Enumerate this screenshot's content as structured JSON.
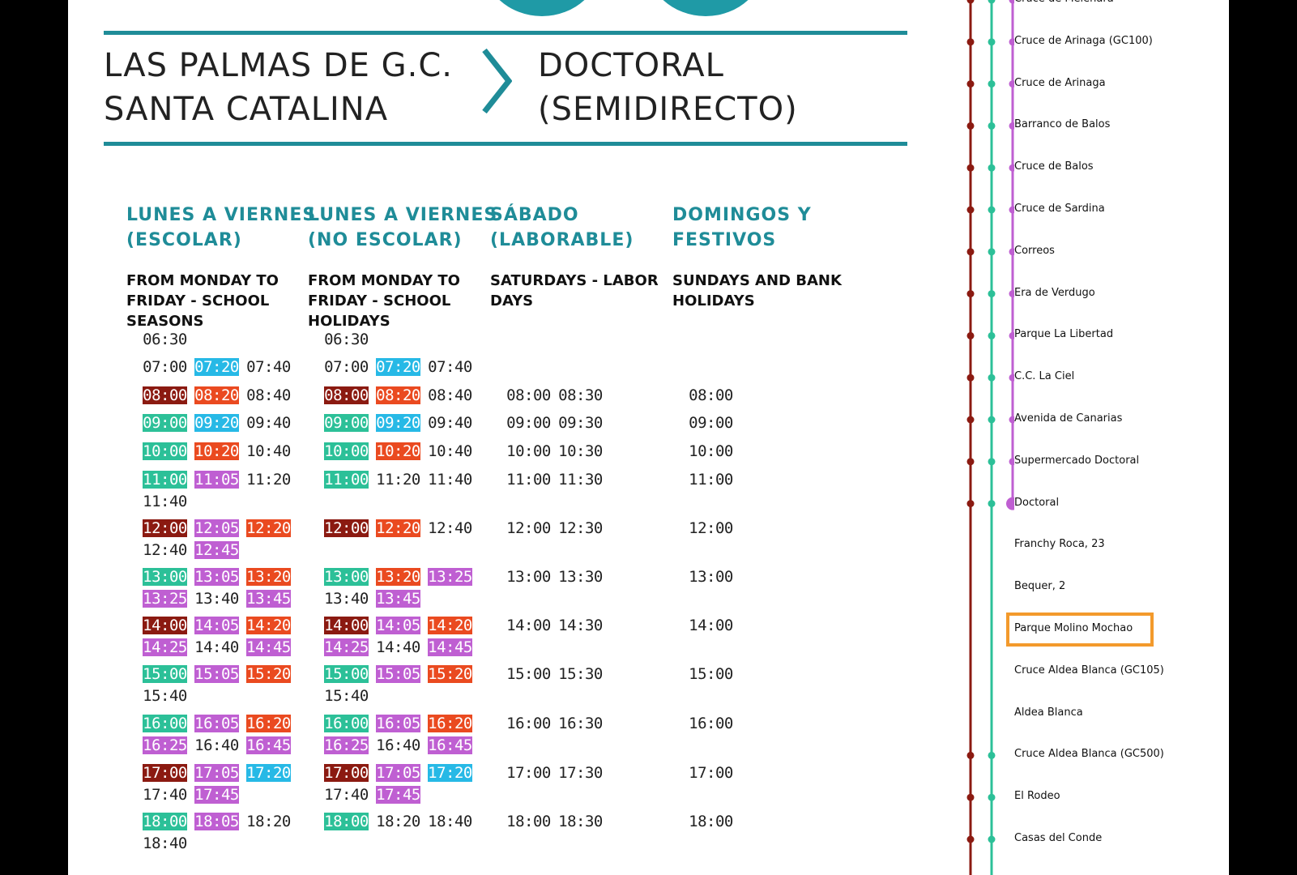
{
  "colors": {
    "maroon": "#8b1a11",
    "green": "#2cc098",
    "purple": "#bf5fd2",
    "cyan": "#27b9e6",
    "orange": "#ea4a20",
    "black": "#111111",
    "teal": "#1f8c98",
    "highlight": "#f39a2c"
  },
  "route": {
    "origin_line1": "LAS PALMAS DE G.C.",
    "origin_line2": "SANTA CATALINA",
    "destination_line1": "DOCTORAL",
    "destination_line2": "(SEMIDIRECTO)"
  },
  "columns": [
    {
      "heading": "LUNES A VIERNES\n(ESCOLAR)",
      "subheading": "FROM MONDAY TO\nFRIDAY - SCHOOL\nSEASONS",
      "rows": [
        [
          {
            "t": "06:30"
          }
        ],
        [
          {
            "t": "07:00"
          },
          {
            "t": "07:20",
            "c": "cyan"
          },
          {
            "t": "07:40"
          }
        ],
        [
          {
            "t": "08:00",
            "c": "maroon"
          },
          {
            "t": "08:20",
            "c": "orange"
          },
          {
            "t": "08:40"
          }
        ],
        [
          {
            "t": "09:00",
            "c": "green"
          },
          {
            "t": "09:20",
            "c": "cyan"
          },
          {
            "t": "09:40"
          }
        ],
        [
          {
            "t": "10:00",
            "c": "green"
          },
          {
            "t": "10:20",
            "c": "orange"
          },
          {
            "t": "10:40"
          }
        ],
        [
          {
            "t": "11:00",
            "c": "green"
          },
          {
            "t": "11:05",
            "c": "purple"
          },
          {
            "t": "11:20"
          },
          {
            "t": "11:40"
          }
        ],
        [
          {
            "t": "12:00",
            "c": "maroon"
          },
          {
            "t": "12:05",
            "c": "purple"
          },
          {
            "t": "12:20",
            "c": "orange"
          },
          {
            "t": "12:40"
          },
          {
            "t": "12:45",
            "c": "purple"
          }
        ],
        [
          {
            "t": "13:00",
            "c": "green"
          },
          {
            "t": "13:05",
            "c": "purple"
          },
          {
            "t": "13:20",
            "c": "orange"
          },
          {
            "t": "13:25",
            "c": "purple"
          },
          {
            "t": "13:40"
          },
          {
            "t": "13:45",
            "c": "purple"
          }
        ],
        [
          {
            "t": "14:00",
            "c": "maroon"
          },
          {
            "t": "14:05",
            "c": "purple"
          },
          {
            "t": "14:20",
            "c": "orange"
          },
          {
            "t": "14:25",
            "c": "purple"
          },
          {
            "t": "14:40"
          },
          {
            "t": "14:45",
            "c": "purple"
          }
        ],
        [
          {
            "t": "15:00",
            "c": "green"
          },
          {
            "t": "15:05",
            "c": "purple"
          },
          {
            "t": "15:20",
            "c": "orange"
          },
          {
            "t": "15:40"
          }
        ],
        [
          {
            "t": "16:00",
            "c": "green"
          },
          {
            "t": "16:05",
            "c": "purple"
          },
          {
            "t": "16:20",
            "c": "orange"
          },
          {
            "t": "16:25",
            "c": "purple"
          },
          {
            "t": "16:40"
          },
          {
            "t": "16:45",
            "c": "purple"
          }
        ],
        [
          {
            "t": "17:00",
            "c": "maroon"
          },
          {
            "t": "17:05",
            "c": "purple"
          },
          {
            "t": "17:20",
            "c": "cyan"
          },
          {
            "t": "17:40"
          },
          {
            "t": "17:45",
            "c": "purple"
          }
        ],
        [
          {
            "t": "18:00",
            "c": "green"
          },
          {
            "t": "18:05",
            "c": "purple"
          },
          {
            "t": "18:20"
          },
          {
            "t": "18:40"
          }
        ]
      ]
    },
    {
      "heading": "LUNES A VIERNES\n(NO ESCOLAR)",
      "subheading": "FROM MONDAY TO\nFRIDAY - SCHOOL\nHOLIDAYS",
      "rows": [
        [
          {
            "t": "06:30"
          }
        ],
        [
          {
            "t": "07:00"
          },
          {
            "t": "07:20",
            "c": "cyan"
          },
          {
            "t": "07:40"
          }
        ],
        [
          {
            "t": "08:00",
            "c": "maroon"
          },
          {
            "t": "08:20",
            "c": "orange"
          },
          {
            "t": "08:40"
          }
        ],
        [
          {
            "t": "09:00",
            "c": "green"
          },
          {
            "t": "09:20",
            "c": "cyan"
          },
          {
            "t": "09:40"
          }
        ],
        [
          {
            "t": "10:00",
            "c": "green"
          },
          {
            "t": "10:20",
            "c": "orange"
          },
          {
            "t": "10:40"
          }
        ],
        [
          {
            "t": "11:00",
            "c": "green"
          },
          {
            "t": "11:20"
          },
          {
            "t": "11:40"
          }
        ],
        [
          {
            "t": "12:00",
            "c": "maroon"
          },
          {
            "t": "12:20",
            "c": "orange"
          },
          {
            "t": "12:40"
          }
        ],
        [
          {
            "t": "13:00",
            "c": "green"
          },
          {
            "t": "13:20",
            "c": "orange"
          },
          {
            "t": "13:25",
            "c": "purple"
          },
          {
            "t": "13:40"
          },
          {
            "t": "13:45",
            "c": "purple"
          }
        ],
        [
          {
            "t": "14:00",
            "c": "maroon"
          },
          {
            "t": "14:05",
            "c": "purple"
          },
          {
            "t": "14:20",
            "c": "orange"
          },
          {
            "t": "14:25",
            "c": "purple"
          },
          {
            "t": "14:40"
          },
          {
            "t": "14:45",
            "c": "purple"
          }
        ],
        [
          {
            "t": "15:00",
            "c": "green"
          },
          {
            "t": "15:05",
            "c": "purple"
          },
          {
            "t": "15:20",
            "c": "orange"
          },
          {
            "t": "15:40"
          }
        ],
        [
          {
            "t": "16:00",
            "c": "green"
          },
          {
            "t": "16:05",
            "c": "purple"
          },
          {
            "t": "16:20",
            "c": "orange"
          },
          {
            "t": "16:25",
            "c": "purple"
          },
          {
            "t": "16:40"
          },
          {
            "t": "16:45",
            "c": "purple"
          }
        ],
        [
          {
            "t": "17:00",
            "c": "maroon"
          },
          {
            "t": "17:05",
            "c": "purple"
          },
          {
            "t": "17:20",
            "c": "cyan"
          },
          {
            "t": "17:40"
          },
          {
            "t": "17:45",
            "c": "purple"
          }
        ],
        [
          {
            "t": "18:00",
            "c": "green"
          },
          {
            "t": "18:20"
          },
          {
            "t": "18:40"
          }
        ]
      ]
    },
    {
      "heading": "SÁBADO\n(LABORABLE)",
      "subheading": "SATURDAYS - LABOR\nDAYS",
      "rows": [
        [],
        [],
        [
          {
            "t": "08:00"
          },
          {
            "t": "08:30"
          }
        ],
        [
          {
            "t": "09:00"
          },
          {
            "t": "09:30"
          }
        ],
        [
          {
            "t": "10:00"
          },
          {
            "t": "10:30"
          }
        ],
        [
          {
            "t": "11:00"
          },
          {
            "t": "11:30"
          }
        ],
        [
          {
            "t": "12:00"
          },
          {
            "t": "12:30"
          }
        ],
        [
          {
            "t": "13:00"
          },
          {
            "t": "13:30"
          }
        ],
        [
          {
            "t": "14:00"
          },
          {
            "t": "14:30"
          }
        ],
        [
          {
            "t": "15:00"
          },
          {
            "t": "15:30"
          }
        ],
        [
          {
            "t": "16:00"
          },
          {
            "t": "16:30"
          }
        ],
        [
          {
            "t": "17:00"
          },
          {
            "t": "17:30"
          }
        ],
        [
          {
            "t": "18:00"
          },
          {
            "t": "18:30"
          }
        ]
      ]
    },
    {
      "heading": "DOMINGOS Y\nFESTIVOS",
      "subheading": "SUNDAYS AND BANK\nHOLIDAYS",
      "rows": [
        [],
        [],
        [
          {
            "t": "08:00"
          }
        ],
        [
          {
            "t": "09:00"
          }
        ],
        [
          {
            "t": "10:00"
          }
        ],
        [
          {
            "t": "11:00"
          }
        ],
        [
          {
            "t": "12:00"
          }
        ],
        [
          {
            "t": "13:00"
          }
        ],
        [
          {
            "t": "14:00"
          }
        ],
        [
          {
            "t": "15:00"
          }
        ],
        [
          {
            "t": "16:00"
          }
        ],
        [
          {
            "t": "17:00"
          }
        ],
        [
          {
            "t": "18:00"
          }
        ]
      ]
    }
  ],
  "stops": [
    {
      "name": "Cruce de Melenara"
    },
    {
      "name": "Cruce de Arinaga (GC100)"
    },
    {
      "name": "Cruce de Arinaga"
    },
    {
      "name": "Barranco de Balos"
    },
    {
      "name": "Cruce de Balos"
    },
    {
      "name": "Cruce de Sardina"
    },
    {
      "name": "Correos"
    },
    {
      "name": "Era de Verdugo"
    },
    {
      "name": "Parque La Libertad"
    },
    {
      "name": "C.C. La Ciel"
    },
    {
      "name": "Avenida de Canarias"
    },
    {
      "name": "Supermercado Doctoral"
    },
    {
      "name": "Doctoral"
    },
    {
      "name": "Franchy Roca, 23"
    },
    {
      "name": "Bequer, 2"
    },
    {
      "name": "Parque Molino Mochao",
      "highlight": true
    },
    {
      "name": "Cruce Aldea Blanca (GC105)"
    },
    {
      "name": "Aldea Blanca"
    },
    {
      "name": "Cruce Aldea Blanca (GC500)"
    },
    {
      "name": "El Rodeo"
    },
    {
      "name": "Casas del Conde"
    }
  ],
  "lines": [
    {
      "color": "maroon",
      "first": 0,
      "last": 20,
      "terminus": null,
      "skip": [
        13,
        14,
        15,
        16,
        17
      ]
    },
    {
      "color": "green",
      "first": 0,
      "last": 20,
      "terminus": null,
      "skip": [
        13,
        14,
        15,
        16,
        17
      ]
    },
    {
      "color": "purple",
      "first": 0,
      "last": 12,
      "terminus": 12,
      "skip": []
    },
    {
      "color": "cyan",
      "first": 0,
      "last": 17,
      "terminus": 17,
      "skip": [
        13,
        14,
        15
      ]
    },
    {
      "color": "orange",
      "first": 0,
      "last": 15,
      "terminus": 15,
      "skip": [
        16,
        17
      ]
    },
    {
      "color": "black",
      "first": 0,
      "last": 12,
      "terminus": 12,
      "skip": []
    }
  ]
}
